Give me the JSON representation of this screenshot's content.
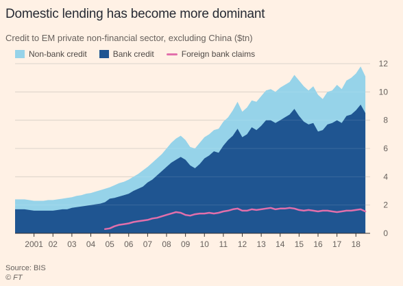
{
  "title": "Domestic lending has become more dominant",
  "subtitle": "Credit to EM private non-financial sector, excluding China ($tn)",
  "source": "Source: BIS",
  "credit": "© FT",
  "colors": {
    "background": "#fff1e5",
    "non_bank": "#96d3e9",
    "bank": "#1f5591",
    "foreign": "#e26fab",
    "grid": "#d7cdc3",
    "axis": "#33302e"
  },
  "chart_data": {
    "type": "area",
    "title": "Domestic lending has become more dominant",
    "subtitle": "Credit to EM private non-financial sector, excluding China ($tn)",
    "ylim": [
      0,
      12
    ],
    "yticks": [
      0,
      2,
      4,
      6,
      8,
      10,
      12
    ],
    "xlim": [
      2000.0,
      2018.75
    ],
    "xtick_positions": [
      2001,
      2002,
      2003,
      2004,
      2005,
      2006,
      2007,
      2008,
      2009,
      2010,
      2011,
      2012,
      2013,
      2014,
      2015,
      2016,
      2017,
      2018
    ],
    "xtick_labels": [
      "2001",
      "02",
      "03",
      "04",
      "05",
      "06",
      "07",
      "08",
      "09",
      "10",
      "11",
      "12",
      "13",
      "14",
      "15",
      "16",
      "17",
      "18"
    ],
    "grid": true,
    "legend_position": "top-left",
    "series": [
      {
        "name": "Non-bank credit",
        "kind": "stacked-area-top",
        "x": [
          2000.0,
          2000.25,
          2000.5,
          2000.75,
          2001.0,
          2001.25,
          2001.5,
          2001.75,
          2002.0,
          2002.25,
          2002.5,
          2002.75,
          2003.0,
          2003.25,
          2003.5,
          2003.75,
          2004.0,
          2004.25,
          2004.5,
          2004.75,
          2005.0,
          2005.25,
          2005.5,
          2005.75,
          2006.0,
          2006.25,
          2006.5,
          2006.75,
          2007.0,
          2007.25,
          2007.5,
          2007.75,
          2008.0,
          2008.25,
          2008.5,
          2008.75,
          2009.0,
          2009.25,
          2009.5,
          2009.75,
          2010.0,
          2010.25,
          2010.5,
          2010.75,
          2011.0,
          2011.25,
          2011.5,
          2011.75,
          2012.0,
          2012.25,
          2012.5,
          2012.75,
          2013.0,
          2013.25,
          2013.5,
          2013.75,
          2014.0,
          2014.25,
          2014.5,
          2014.75,
          2015.0,
          2015.25,
          2015.5,
          2015.75,
          2016.0,
          2016.25,
          2016.5,
          2016.75,
          2017.0,
          2017.25,
          2017.5,
          2017.75,
          2018.0,
          2018.25,
          2018.5
        ],
        "values": [
          2.4,
          2.4,
          2.4,
          2.35,
          2.3,
          2.3,
          2.3,
          2.35,
          2.35,
          2.4,
          2.45,
          2.5,
          2.55,
          2.65,
          2.7,
          2.8,
          2.85,
          2.95,
          3.05,
          3.15,
          3.25,
          3.4,
          3.55,
          3.65,
          3.8,
          4.0,
          4.2,
          4.45,
          4.7,
          5.0,
          5.3,
          5.6,
          6.0,
          6.4,
          6.7,
          6.9,
          6.6,
          6.1,
          6.0,
          6.4,
          6.8,
          7.0,
          7.3,
          7.4,
          7.9,
          8.2,
          8.7,
          9.3,
          8.6,
          8.9,
          9.4,
          9.3,
          9.7,
          10.1,
          10.2,
          10.0,
          10.3,
          10.5,
          10.7,
          11.2,
          10.8,
          10.4,
          10.1,
          10.4,
          9.8,
          9.5,
          10.0,
          10.1,
          10.5,
          10.2,
          10.8,
          11.0,
          11.3,
          11.8,
          11.1
        ]
      },
      {
        "name": "Bank credit",
        "kind": "area",
        "x": [
          2000.0,
          2000.25,
          2000.5,
          2000.75,
          2001.0,
          2001.25,
          2001.5,
          2001.75,
          2002.0,
          2002.25,
          2002.5,
          2002.75,
          2003.0,
          2003.25,
          2003.5,
          2003.75,
          2004.0,
          2004.25,
          2004.5,
          2004.75,
          2005.0,
          2005.25,
          2005.5,
          2005.75,
          2006.0,
          2006.25,
          2006.5,
          2006.75,
          2007.0,
          2007.25,
          2007.5,
          2007.75,
          2008.0,
          2008.25,
          2008.5,
          2008.75,
          2009.0,
          2009.25,
          2009.5,
          2009.75,
          2010.0,
          2010.25,
          2010.5,
          2010.75,
          2011.0,
          2011.25,
          2011.5,
          2011.75,
          2012.0,
          2012.25,
          2012.5,
          2012.75,
          2013.0,
          2013.25,
          2013.5,
          2013.75,
          2014.0,
          2014.25,
          2014.5,
          2014.75,
          2015.0,
          2015.25,
          2015.5,
          2015.75,
          2016.0,
          2016.25,
          2016.5,
          2016.75,
          2017.0,
          2017.25,
          2017.5,
          2017.75,
          2018.0,
          2018.25,
          2018.5
        ],
        "values": [
          1.7,
          1.7,
          1.7,
          1.65,
          1.6,
          1.6,
          1.6,
          1.6,
          1.6,
          1.65,
          1.7,
          1.7,
          1.8,
          1.85,
          1.9,
          1.95,
          2.0,
          2.05,
          2.1,
          2.2,
          2.45,
          2.5,
          2.6,
          2.7,
          2.8,
          3.0,
          3.15,
          3.3,
          3.6,
          3.8,
          4.1,
          4.4,
          4.7,
          5.0,
          5.2,
          5.4,
          5.2,
          4.8,
          4.6,
          4.9,
          5.3,
          5.5,
          5.8,
          5.7,
          6.2,
          6.6,
          6.9,
          7.4,
          6.8,
          7.0,
          7.5,
          7.3,
          7.6,
          8.0,
          8.0,
          7.8,
          8.0,
          8.2,
          8.4,
          8.8,
          8.3,
          7.9,
          7.7,
          7.8,
          7.2,
          7.3,
          7.7,
          7.8,
          8.0,
          7.8,
          8.3,
          8.4,
          8.7,
          9.1,
          8.5
        ]
      },
      {
        "name": "Foreign bank claims",
        "kind": "line",
        "x": [
          2004.75,
          2005.0,
          2005.25,
          2005.5,
          2005.75,
          2006.0,
          2006.25,
          2006.5,
          2006.75,
          2007.0,
          2007.25,
          2007.5,
          2007.75,
          2008.0,
          2008.25,
          2008.5,
          2008.75,
          2009.0,
          2009.25,
          2009.5,
          2009.75,
          2010.0,
          2010.25,
          2010.5,
          2010.75,
          2011.0,
          2011.25,
          2011.5,
          2011.75,
          2012.0,
          2012.25,
          2012.5,
          2012.75,
          2013.0,
          2013.25,
          2013.5,
          2013.75,
          2014.0,
          2014.25,
          2014.5,
          2014.75,
          2015.0,
          2015.25,
          2015.5,
          2015.75,
          2016.0,
          2016.25,
          2016.5,
          2016.75,
          2017.0,
          2017.25,
          2017.5,
          2017.75,
          2018.0,
          2018.25,
          2018.5
        ],
        "values": [
          0.3,
          0.35,
          0.5,
          0.6,
          0.65,
          0.7,
          0.8,
          0.85,
          0.9,
          0.95,
          1.05,
          1.1,
          1.2,
          1.3,
          1.4,
          1.5,
          1.45,
          1.3,
          1.25,
          1.35,
          1.4,
          1.4,
          1.45,
          1.4,
          1.45,
          1.55,
          1.6,
          1.7,
          1.75,
          1.6,
          1.6,
          1.7,
          1.65,
          1.7,
          1.75,
          1.8,
          1.7,
          1.75,
          1.75,
          1.8,
          1.75,
          1.65,
          1.6,
          1.65,
          1.6,
          1.55,
          1.6,
          1.6,
          1.55,
          1.5,
          1.55,
          1.6,
          1.6,
          1.65,
          1.7,
          1.55
        ]
      }
    ]
  }
}
